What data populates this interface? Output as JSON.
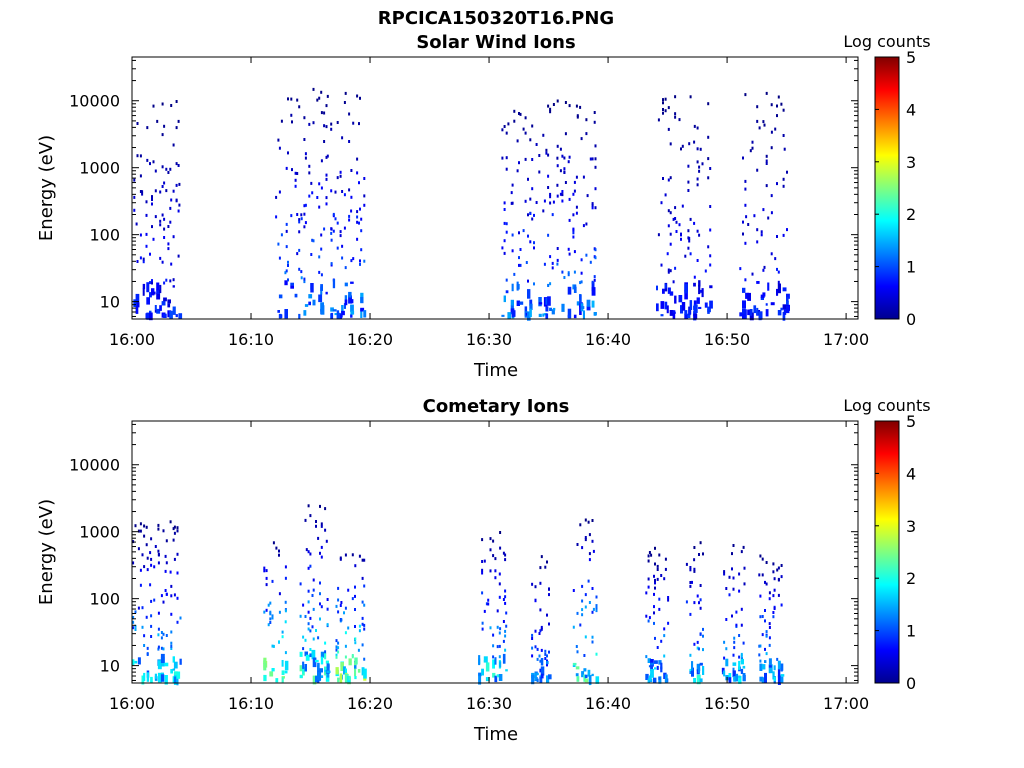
{
  "figure_title": "RPCICA150320T16.PNG",
  "chart_data": [
    {
      "type": "heatmap",
      "title": "Solar Wind Ions",
      "xlabel": "Time",
      "ylabel": "Energy (eV)",
      "x_range_min": [
        0,
        61
      ],
      "x_ticks": [
        {
          "minute": 0,
          "label": "16:00"
        },
        {
          "minute": 10,
          "label": "16:10"
        },
        {
          "minute": 20,
          "label": "16:20"
        },
        {
          "minute": 30,
          "label": "16:30"
        },
        {
          "minute": 40,
          "label": "16:40"
        },
        {
          "minute": 50,
          "label": "16:50"
        },
        {
          "minute": 60,
          "label": "17:00"
        }
      ],
      "y_scale": "log",
      "y_range_eV": [
        5.5,
        45000
      ],
      "y_ticks": [
        {
          "value": 10,
          "label": "10"
        },
        {
          "value": 100,
          "label": "100"
        },
        {
          "value": 1000,
          "label": "1000"
        },
        {
          "value": 10000,
          "label": "10000"
        }
      ],
      "colorbar": {
        "label": "Log counts",
        "min": 0,
        "max": 5,
        "ticks": [
          "0",
          "1",
          "2",
          "3",
          "4",
          "5"
        ],
        "colormap": "jet"
      },
      "bursts": [
        {
          "start_min": 0.0,
          "end_min": 4.0,
          "e_min": 6,
          "e_max": 12000,
          "max_log": 1.0
        },
        {
          "start_min": 12.0,
          "end_min": 19.5,
          "e_min": 6,
          "e_max": 17000,
          "max_log": 1.6
        },
        {
          "start_min": 31.0,
          "end_min": 39.0,
          "e_min": 6,
          "e_max": 10000,
          "max_log": 1.6
        },
        {
          "start_min": 44.0,
          "end_min": 48.5,
          "e_min": 6,
          "e_max": 15000,
          "max_log": 1.0
        },
        {
          "start_min": 51.0,
          "end_min": 55.0,
          "e_min": 6,
          "e_max": 15000,
          "max_log": 1.0
        }
      ]
    },
    {
      "type": "heatmap",
      "title": "Cometary Ions",
      "xlabel": "Time",
      "ylabel": "Energy (eV)",
      "x_range_min": [
        0,
        61
      ],
      "x_ticks": [
        {
          "minute": 0,
          "label": "16:00"
        },
        {
          "minute": 10,
          "label": "16:10"
        },
        {
          "minute": 20,
          "label": "16:20"
        },
        {
          "minute": 30,
          "label": "16:30"
        },
        {
          "minute": 40,
          "label": "16:40"
        },
        {
          "minute": 50,
          "label": "16:50"
        },
        {
          "minute": 60,
          "label": "17:00"
        }
      ],
      "y_scale": "log",
      "y_range_eV": [
        5.5,
        45000
      ],
      "y_ticks": [
        {
          "value": 10,
          "label": "10"
        },
        {
          "value": 100,
          "label": "100"
        },
        {
          "value": 1000,
          "label": "1000"
        },
        {
          "value": 10000,
          "label": "10000"
        }
      ],
      "colorbar": {
        "label": "Log counts",
        "min": 0,
        "max": 5,
        "ticks": [
          "0",
          "1",
          "2",
          "3",
          "4",
          "5"
        ],
        "colormap": "jet"
      },
      "bursts": [
        {
          "start_min": 0.0,
          "end_min": 4.0,
          "e_min": 6,
          "e_max": 1500,
          "max_log": 2.2
        },
        {
          "start_min": 11.0,
          "end_min": 13.0,
          "e_min": 6,
          "e_max": 800,
          "max_log": 3.0
        },
        {
          "start_min": 14.0,
          "end_min": 16.5,
          "e_min": 6,
          "e_max": 3000,
          "max_log": 2.5
        },
        {
          "start_min": 17.0,
          "end_min": 19.5,
          "e_min": 6,
          "e_max": 600,
          "max_log": 3.0
        },
        {
          "start_min": 29.0,
          "end_min": 31.5,
          "e_min": 6,
          "e_max": 1000,
          "max_log": 2.3
        },
        {
          "start_min": 33.5,
          "end_min": 35.0,
          "e_min": 6,
          "e_max": 500,
          "max_log": 1.6
        },
        {
          "start_min": 37.0,
          "end_min": 39.0,
          "e_min": 6,
          "e_max": 1600,
          "max_log": 2.7
        },
        {
          "start_min": 43.0,
          "end_min": 45.0,
          "e_min": 6,
          "e_max": 600,
          "max_log": 2.0
        },
        {
          "start_min": 46.5,
          "end_min": 48.0,
          "e_min": 6,
          "e_max": 700,
          "max_log": 2.2
        },
        {
          "start_min": 49.5,
          "end_min": 51.5,
          "e_min": 6,
          "e_max": 800,
          "max_log": 2.0
        },
        {
          "start_min": 52.5,
          "end_min": 54.5,
          "e_min": 6,
          "e_max": 500,
          "max_log": 2.0
        }
      ]
    }
  ]
}
